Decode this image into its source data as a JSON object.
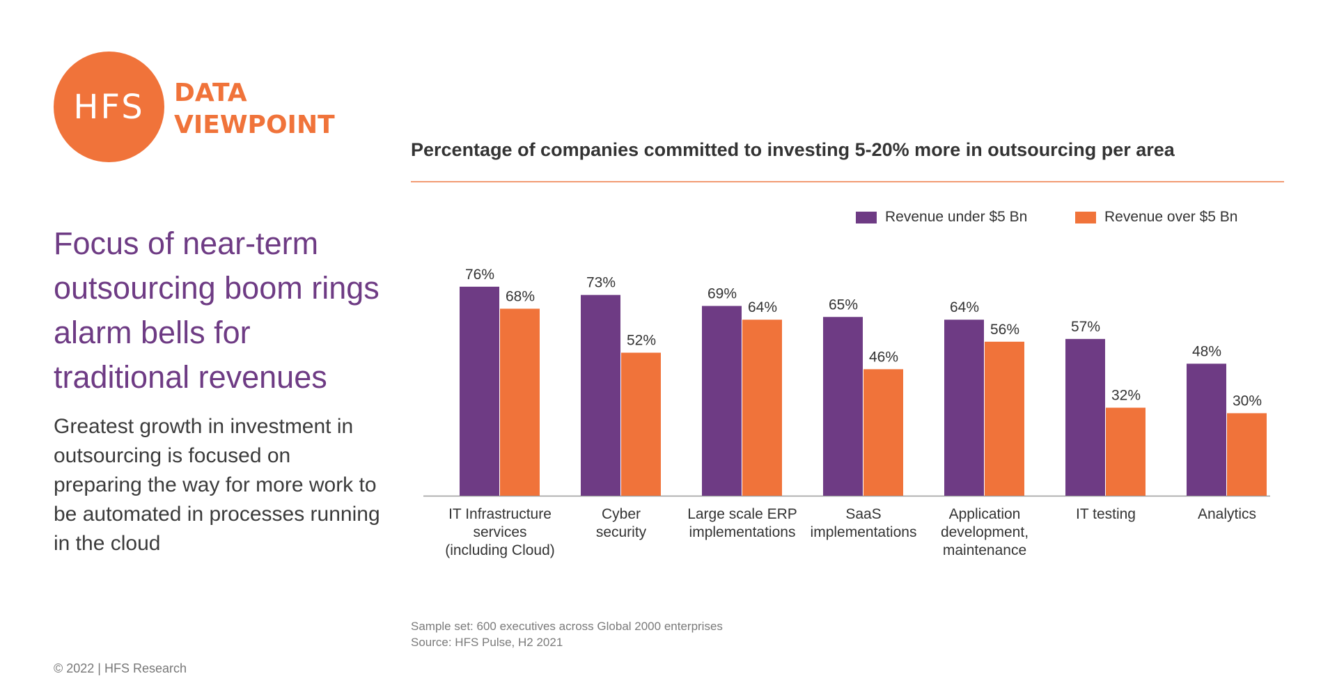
{
  "logo": {
    "mark": "HFS",
    "line1": "DATA",
    "line2": "VIEWPOINT"
  },
  "headline": "Focus of near-term outsourcing boom rings alarm bells for traditional revenues",
  "subtext": "Greatest growth in investment in outsourcing is focused on preparing the way for more work to be automated in processes running in the cloud",
  "footer": "© 2022 | HFS Research",
  "source": {
    "line1": "Sample set: 600 executives across Global 2000 enterprises",
    "line2": "Source: HFS Pulse, H2 2021"
  },
  "colors": {
    "purple": "#6e3b84",
    "orange": "#f0733a"
  },
  "chart_data": {
    "type": "bar",
    "title": "Percentage of companies committed to investing 5-20% more in outsourcing per area",
    "categories": [
      [
        "IT Infrastructure",
        "services",
        "(including Cloud)"
      ],
      [
        "Cyber",
        "security"
      ],
      [
        "Large scale ERP",
        "implementations"
      ],
      [
        "SaaS",
        "implementations"
      ],
      [
        "Application",
        "development,",
        "maintenance"
      ],
      [
        "IT testing"
      ],
      [
        "Analytics"
      ]
    ],
    "series": [
      {
        "name": "Revenue under $5 Bn",
        "color": "#6e3b84",
        "values": [
          76,
          73,
          69,
          65,
          64,
          57,
          48
        ]
      },
      {
        "name": "Revenue over $5 Bn",
        "color": "#f0733a",
        "values": [
          68,
          52,
          64,
          46,
          56,
          32,
          30
        ]
      }
    ],
    "value_suffix": "%",
    "ylim": [
      0,
      100
    ],
    "legend_position": "top-right",
    "grid": false
  }
}
